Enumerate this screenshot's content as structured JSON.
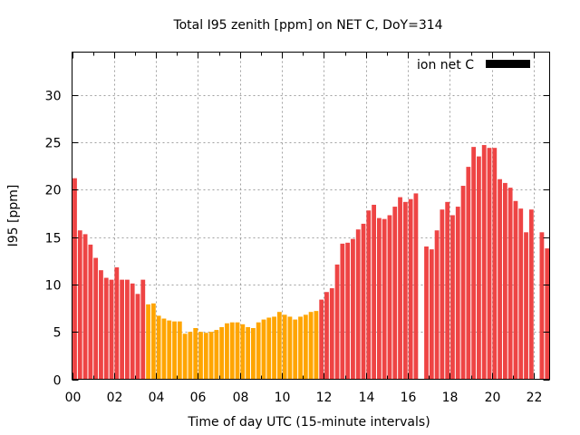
{
  "chart_data": {
    "type": "bar",
    "title": "Total I95 zenith [ppm] on NET C, DoY=314",
    "xlabel": "Time of day UTC (15-minute intervals)",
    "ylabel": "I95 [ppm]",
    "xlim_hours": [
      0,
      22.75
    ],
    "ylim": [
      0,
      34.5
    ],
    "x_ticks": [
      "00",
      "02",
      "04",
      "06",
      "08",
      "10",
      "12",
      "14",
      "16",
      "18",
      "20",
      "22"
    ],
    "x_tick_hours": [
      0,
      2,
      4,
      6,
      8,
      10,
      12,
      14,
      16,
      18,
      20,
      22
    ],
    "y_ticks": [
      0,
      5,
      10,
      15,
      20,
      25,
      30
    ],
    "grid": true,
    "legend": {
      "label": "ion net C",
      "color": "#000000",
      "position": "top-right"
    },
    "colors": {
      "high": "#ee4444",
      "low": "#ffa500"
    },
    "interval_minutes": 15,
    "values": [
      21.2,
      15.7,
      15.3,
      14.2,
      12.8,
      11.5,
      10.7,
      10.5,
      11.8,
      10.5,
      10.5,
      10.1,
      9.0,
      10.5,
      7.9,
      8.0,
      6.7,
      6.4,
      6.2,
      6.1,
      6.1,
      4.8,
      5.0,
      5.4,
      5.0,
      4.9,
      5.0,
      5.2,
      5.5,
      5.9,
      6.0,
      6.0,
      5.8,
      5.5,
      5.4,
      6.0,
      6.3,
      6.5,
      6.6,
      7.1,
      6.8,
      6.6,
      6.3,
      6.6,
      6.8,
      7.1,
      7.2,
      8.4,
      9.2,
      9.6,
      12.1,
      14.3,
      14.4,
      14.8,
      15.8,
      16.4,
      17.8,
      18.4,
      17.0,
      16.9,
      17.3,
      18.2,
      19.2,
      18.7,
      19.0,
      19.6,
      null,
      14.0,
      13.7,
      15.7,
      17.9,
      18.7,
      17.3,
      18.2,
      20.4,
      22.4,
      24.5,
      23.5,
      24.7,
      24.4,
      24.4,
      21.1,
      20.7,
      20.2,
      18.8,
      18.0,
      15.5,
      17.9,
      null,
      15.5,
      13.8,
      13.9
    ],
    "color_class": [
      "high",
      "high",
      "high",
      "high",
      "high",
      "high",
      "high",
      "high",
      "high",
      "high",
      "high",
      "high",
      "high",
      "high",
      "low",
      "low",
      "low",
      "low",
      "low",
      "low",
      "low",
      "low",
      "low",
      "low",
      "low",
      "low",
      "low",
      "low",
      "low",
      "low",
      "low",
      "low",
      "low",
      "low",
      "low",
      "low",
      "low",
      "low",
      "low",
      "low",
      "low",
      "low",
      "low",
      "low",
      "low",
      "low",
      "low",
      "high",
      "high",
      "high",
      "high",
      "high",
      "high",
      "high",
      "high",
      "high",
      "high",
      "high",
      "high",
      "high",
      "high",
      "high",
      "high",
      "high",
      "high",
      "high",
      "high",
      "high",
      "high",
      "high",
      "high",
      "high",
      "high",
      "high",
      "high",
      "high",
      "high",
      "high",
      "high",
      "high",
      "high",
      "high",
      "high",
      "high",
      "high",
      "high",
      "high",
      "high",
      "high",
      "high",
      "high",
      "high"
    ]
  }
}
